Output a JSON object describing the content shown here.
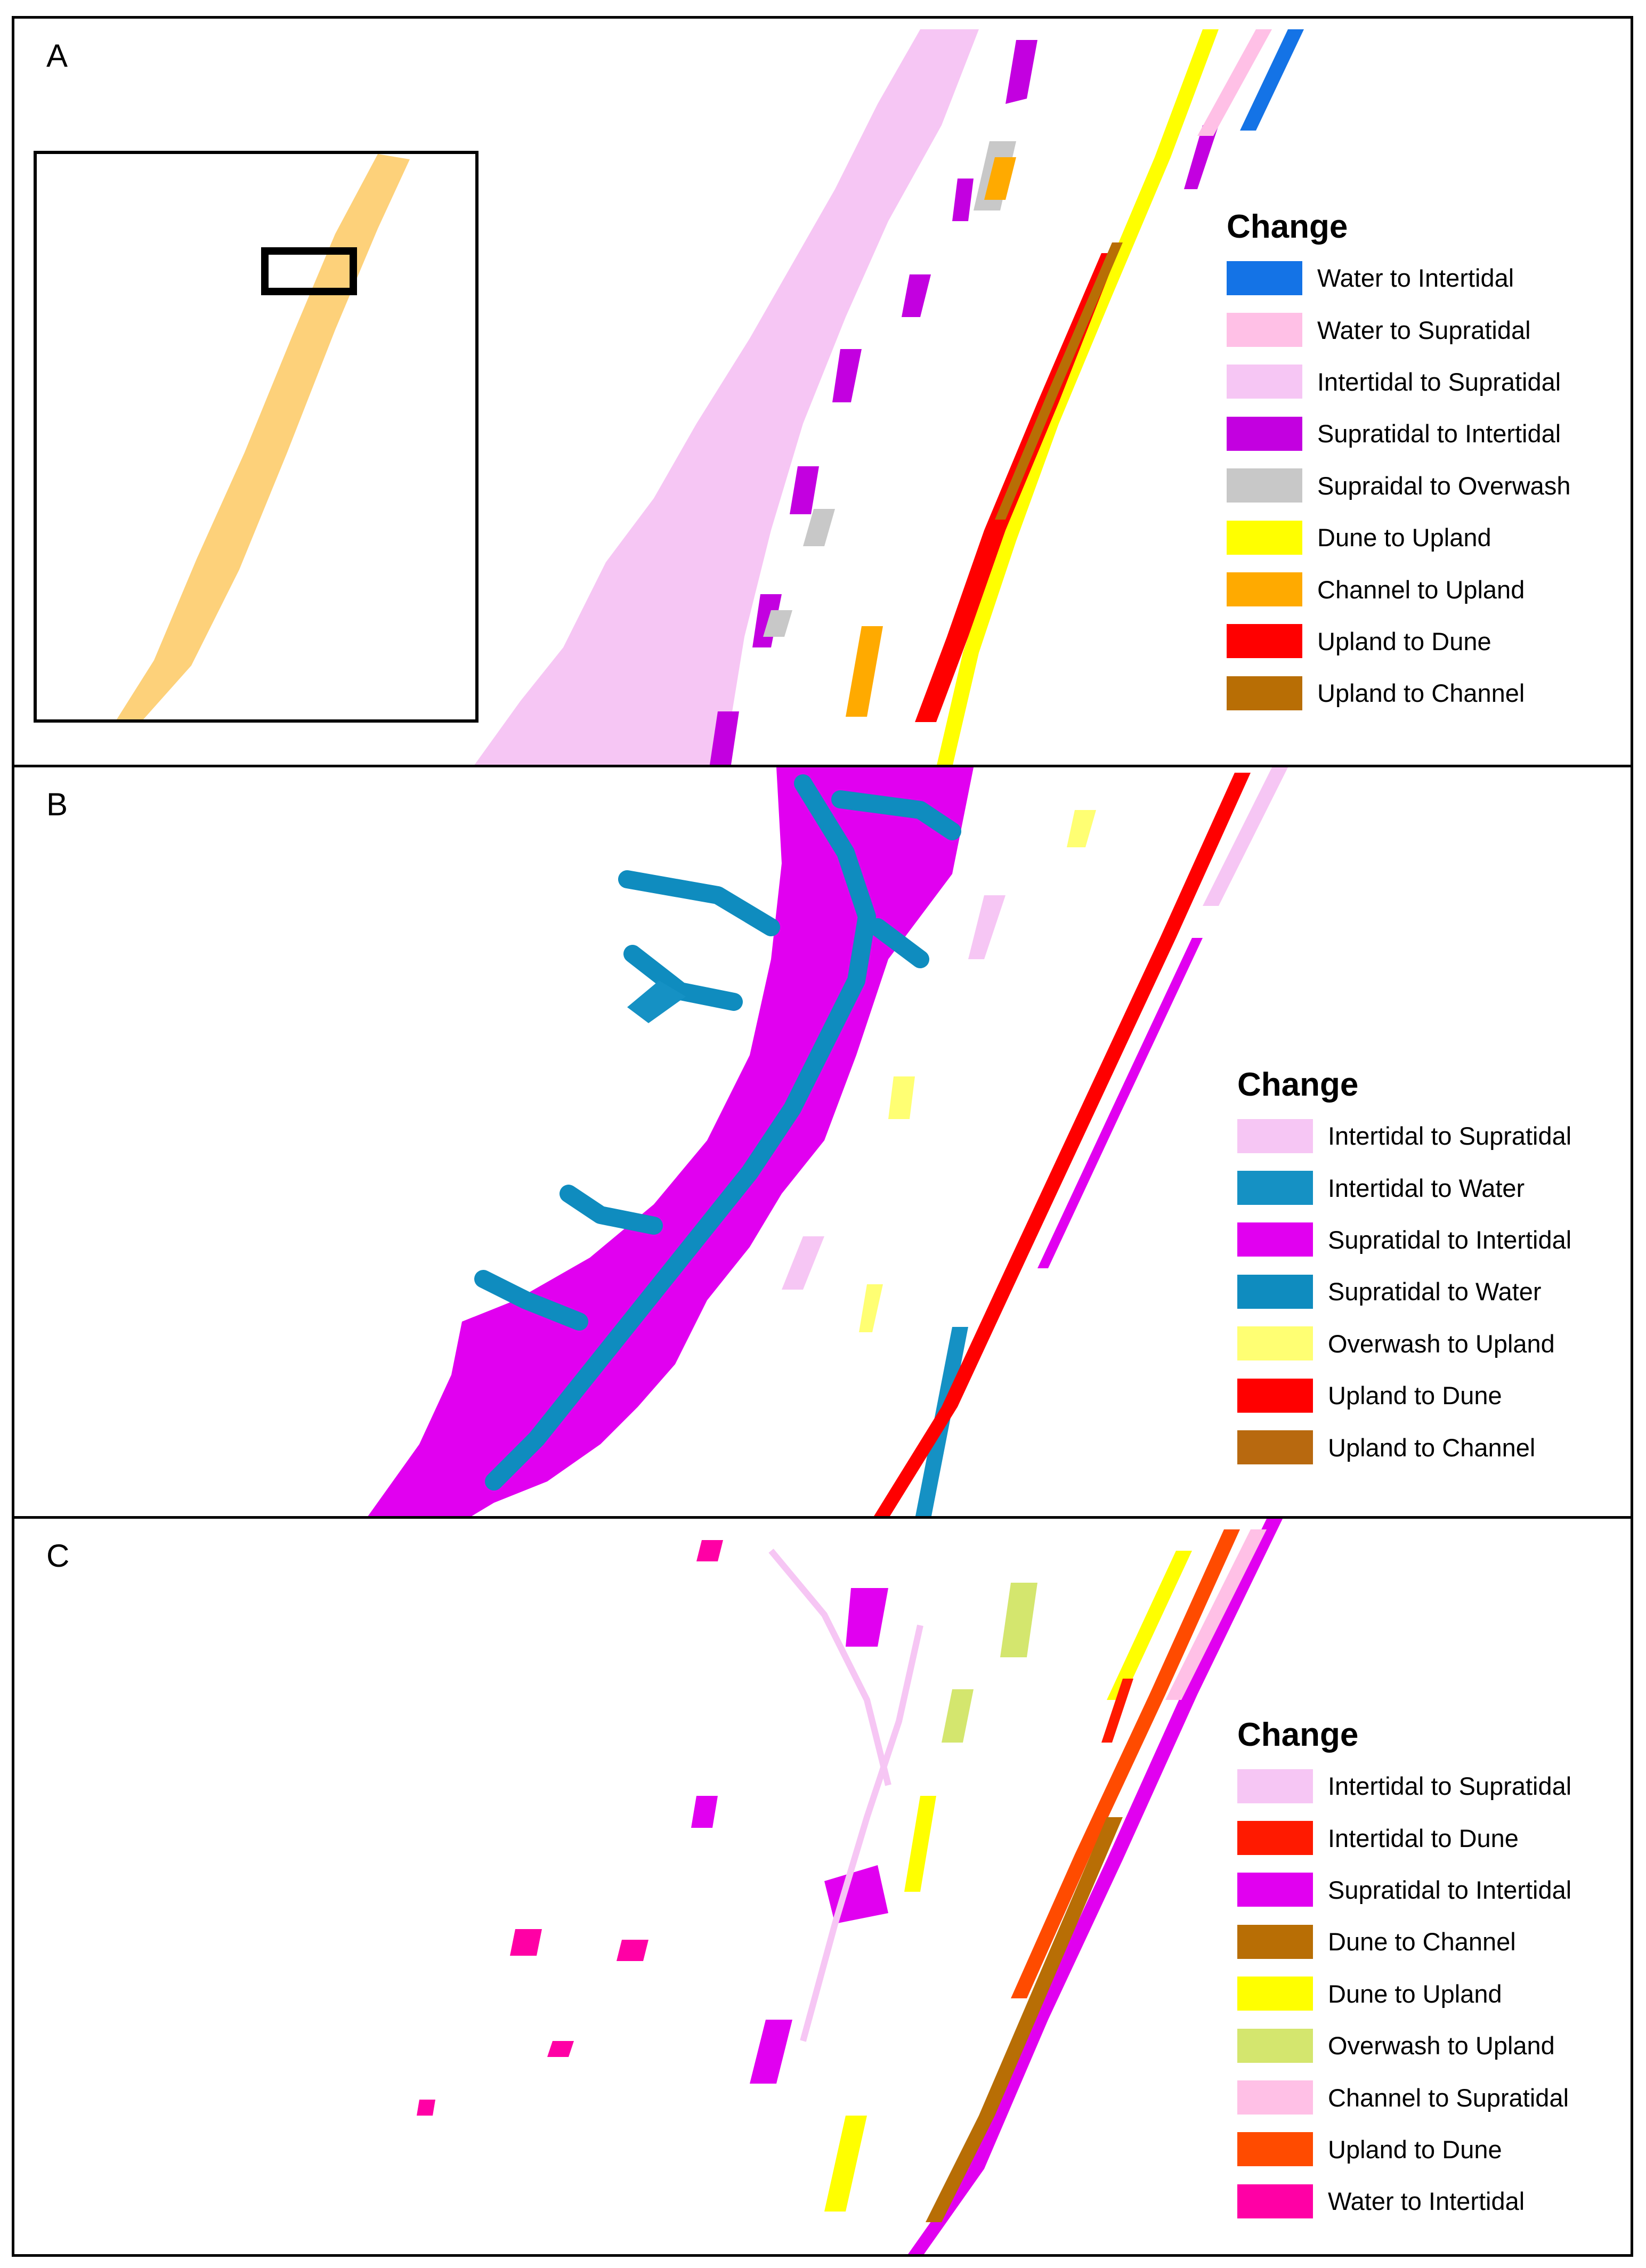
{
  "panels": [
    {
      "letter": "A",
      "legend_title": "Change",
      "legend": [
        {
          "label": "Water to Intertidal",
          "color": "#1473e6"
        },
        {
          "label": "Water to Supratidal",
          "color": "#ffc0e6"
        },
        {
          "label": "Intertidal to Supratidal",
          "color": "#f6c6f4"
        },
        {
          "label": "Supratidal to Intertidal",
          "color": "#c300e0"
        },
        {
          "label": "Supraidal to Overwash",
          "color": "#c8c8c8"
        },
        {
          "label": "Dune to Upland",
          "color": "#ffff00"
        },
        {
          "label": "Channel to Upland",
          "color": "#ffaa00"
        },
        {
          "label": "Upland to Dune",
          "color": "#ff0000"
        },
        {
          "label": "Upland to Channel",
          "color": "#b86e05"
        }
      ]
    },
    {
      "letter": "B",
      "legend_title": "Change",
      "legend": [
        {
          "label": "Intertidal to Supratidal",
          "color": "#f6c6f4"
        },
        {
          "label": "Intertidal to Water",
          "color": "#1591c4"
        },
        {
          "label": "Supratidal to Intertidal",
          "color": "#e100f0"
        },
        {
          "label": "Supratidal to Water",
          "color": "#0f8cbf"
        },
        {
          "label": "Overwash to Upland",
          "color": "#ffff73"
        },
        {
          "label": "Upland to Dune",
          "color": "#ff0000"
        },
        {
          "label": "Upland to Channel",
          "color": "#b8690f"
        }
      ]
    },
    {
      "letter": "C",
      "legend_title": "Change",
      "legend": [
        {
          "label": "Intertidal to Supratidal",
          "color": "#f6c6f4"
        },
        {
          "label": "Intertidal to Dune",
          "color": "#ff1a00"
        },
        {
          "label": "Supratidal to Intertidal",
          "color": "#e100f0"
        },
        {
          "label": "Dune to Channel",
          "color": "#b86e05"
        },
        {
          "label": "Dune to Upland",
          "color": "#ffff00"
        },
        {
          "label": "Overwash to Upland",
          "color": "#d4e66e"
        },
        {
          "label": "Channel to Supratidal",
          "color": "#ffc0e6"
        },
        {
          "label": "Upland to Dune",
          "color": "#ff4b00"
        },
        {
          "label": "Water to Intertidal",
          "color": "#ff00a5"
        }
      ]
    }
  ],
  "inset": {
    "island_color": "#fdd17a",
    "locator_color": "#000000"
  }
}
